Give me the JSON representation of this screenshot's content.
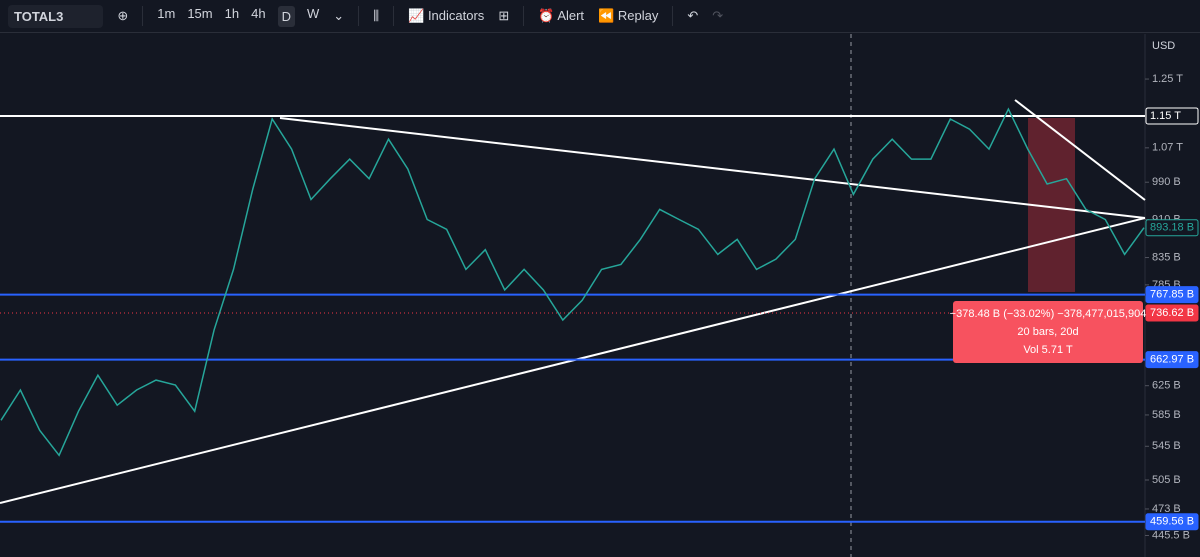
{
  "toolbar": {
    "symbol": "TOTAL3",
    "intervals": [
      "1m",
      "15m",
      "1h",
      "4h",
      "D",
      "W"
    ],
    "indicators": "Indicators",
    "alert": "Alert",
    "replay": "Replay"
  },
  "currency": "USD",
  "chart_data": {
    "type": "line",
    "color": "#26a69a",
    "log_scale": true,
    "values": [
      578,
      619,
      565,
      534,
      590,
      640,
      598,
      619,
      633,
      626,
      590,
      709,
      813,
      975,
      1142,
      1067,
      952,
      998,
      1043,
      998,
      1091,
      1020,
      910,
      890,
      813,
      850,
      776,
      813,
      776,
      725,
      758,
      813,
      822,
      870,
      931,
      910,
      890,
      841,
      870,
      813,
      832,
      870,
      998,
      1067,
      963,
      1043,
      1091,
      1043,
      1043,
      1142,
      1116,
      1067,
      1168,
      1067,
      986,
      998,
      931,
      910,
      841,
      893.18
    ],
    "ylim": [
      436,
      1384
    ],
    "yticks": [
      {
        "value": 1250,
        "label": "1.25 T"
      },
      {
        "value": 1070,
        "label": "1.07 T"
      },
      {
        "value": 990,
        "label": "990 B"
      },
      {
        "value": 910,
        "label": "910 B"
      },
      {
        "value": 835,
        "label": "835 B"
      },
      {
        "value": 785,
        "label": "785 B"
      },
      {
        "value": 625,
        "label": "625 B"
      },
      {
        "value": 585,
        "label": "585 B"
      },
      {
        "value": 545,
        "label": "545 B"
      },
      {
        "value": 505,
        "label": "505 B"
      },
      {
        "value": 473,
        "label": "473 B"
      },
      {
        "value": 445.5,
        "label": "445.5 B"
      }
    ],
    "price_lines": [
      {
        "value": 1150,
        "label": "1.15 T",
        "color": "#ffffff"
      },
      {
        "value": 767.85,
        "label": "767.85 B",
        "color": "#2962ff"
      },
      {
        "value": 736.62,
        "label": "736.62 B",
        "color": "#f23645"
      },
      {
        "value": 662.97,
        "label": "662.97 B",
        "color": "#2962ff"
      },
      {
        "value": 459.56,
        "label": "459.56 B",
        "color": "#2962ff"
      }
    ],
    "last_price": {
      "value": 893.18,
      "label": "893.18 B",
      "color": "#26a69a"
    },
    "measure": {
      "change": "−378.48 B (−33.02%) −378,477,015,904",
      "bars": "20 bars, 20d",
      "volume": "Vol 5.71 T"
    }
  }
}
